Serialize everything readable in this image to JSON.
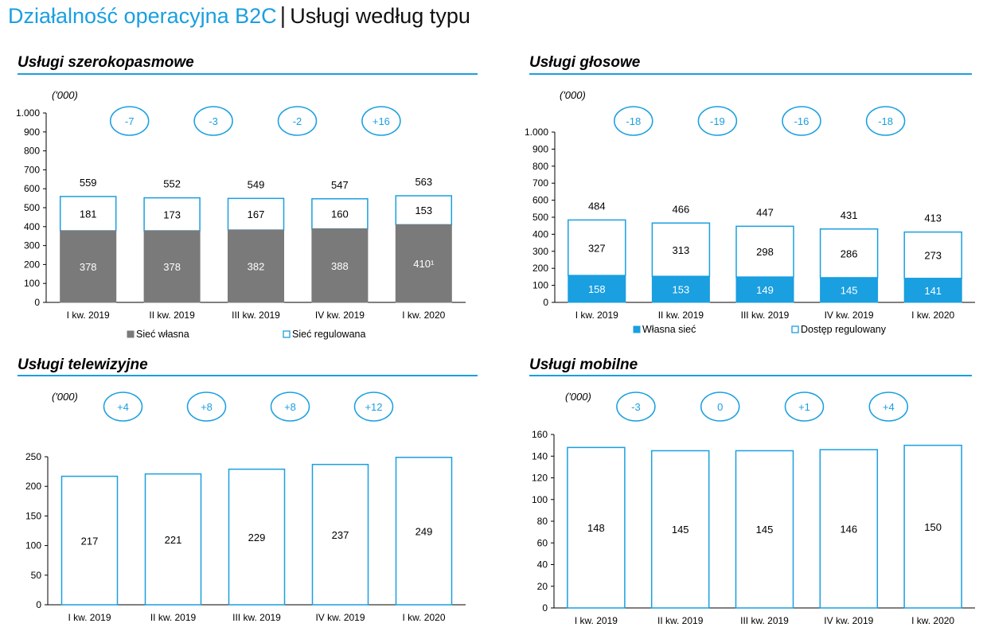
{
  "header": {
    "title_main": "Działalność operacyjna B2C",
    "title_sub": "Usługi według typu"
  },
  "colors": {
    "accent": "#1a9fe0",
    "own_network_gray": "#7a7a7a",
    "own_network_blue": "#1a9fe0",
    "outline": "#1a9fe0"
  },
  "chart_data": [
    {
      "id": "broadband",
      "type": "bar",
      "stacked": true,
      "title": "Usługi szerokopasmowe",
      "unit_label": "('000)",
      "categories": [
        "I kw. 2019",
        "II kw. 2019",
        "III kw. 2019",
        "IV kw. 2019",
        "I kw. 2020"
      ],
      "series": [
        {
          "name": "Sieć własna",
          "values": [
            378,
            378,
            382,
            388,
            410
          ],
          "labels": [
            "378",
            "378",
            "382",
            "388",
            "410¹"
          ]
        },
        {
          "name": "Sieć regulowana",
          "values": [
            181,
            173,
            167,
            160,
            153
          ]
        }
      ],
      "totals": [
        559,
        552,
        549,
        547,
        563
      ],
      "changes": [
        "-7",
        "-3",
        "-2",
        "+16"
      ],
      "ylim": [
        0,
        1000
      ],
      "yticks": [
        0,
        100,
        200,
        300,
        400,
        500,
        600,
        700,
        800,
        900,
        1000
      ],
      "ytick_labels": [
        "0",
        "100",
        "200",
        "300",
        "400",
        "500",
        "600",
        "700",
        "800",
        "900",
        "1.000"
      ],
      "legend": [
        "Sieć własna",
        "Sieć regulowana"
      ]
    },
    {
      "id": "voice",
      "type": "bar",
      "stacked": true,
      "title": "Usługi głosowe",
      "unit_label": "('000)",
      "categories": [
        "I kw. 2019",
        "II kw. 2019",
        "III kw. 2019",
        "IV kw. 2019",
        "I kw. 2020"
      ],
      "series": [
        {
          "name": "Własna sieć",
          "values": [
            158,
            153,
            149,
            145,
            141
          ]
        },
        {
          "name": "Dostęp regulowany",
          "values": [
            327,
            313,
            298,
            286,
            273
          ]
        }
      ],
      "totals": [
        484,
        466,
        447,
        431,
        413
      ],
      "changes": [
        "-18",
        "-19",
        "-16",
        "-18"
      ],
      "ylim": [
        0,
        1000
      ],
      "yticks": [
        0,
        100,
        200,
        300,
        400,
        500,
        600,
        700,
        800,
        900,
        1000
      ],
      "ytick_labels": [
        "0",
        "100",
        "200",
        "300",
        "400",
        "500",
        "600",
        "700",
        "800",
        "900",
        "1.000"
      ],
      "legend": [
        "Własna sieć",
        "Dostęp regulowany"
      ]
    },
    {
      "id": "tv",
      "type": "bar",
      "stacked": false,
      "title": "Usługi telewizyjne",
      "unit_label": "('000)",
      "categories": [
        "I kw. 2019",
        "II kw. 2019",
        "III kw. 2019",
        "IV kw. 2019",
        "I kw. 2020"
      ],
      "values": [
        217,
        221,
        229,
        237,
        249
      ],
      "changes": [
        "+4",
        "+8",
        "+8",
        "+12"
      ],
      "ylim": [
        0,
        250
      ],
      "yticks": [
        0,
        50,
        100,
        150,
        200,
        250
      ],
      "ytick_labels": [
        "0",
        "50",
        "100",
        "150",
        "200",
        "250"
      ]
    },
    {
      "id": "mobile",
      "type": "bar",
      "stacked": false,
      "title": "Usługi mobilne",
      "unit_label": "('000)",
      "categories": [
        "I kw. 2019",
        "II kw. 2019",
        "III kw. 2019",
        "IV kw. 2019",
        "I kw. 2020"
      ],
      "values": [
        148,
        145,
        145,
        146,
        150
      ],
      "changes": [
        "-3",
        "0",
        "+1",
        "+4"
      ],
      "ylim": [
        0,
        160
      ],
      "yticks": [
        0,
        20,
        40,
        60,
        80,
        100,
        120,
        140,
        160
      ],
      "ytick_labels": [
        "0",
        "20",
        "40",
        "60",
        "80",
        "100",
        "120",
        "140",
        "160"
      ]
    }
  ]
}
